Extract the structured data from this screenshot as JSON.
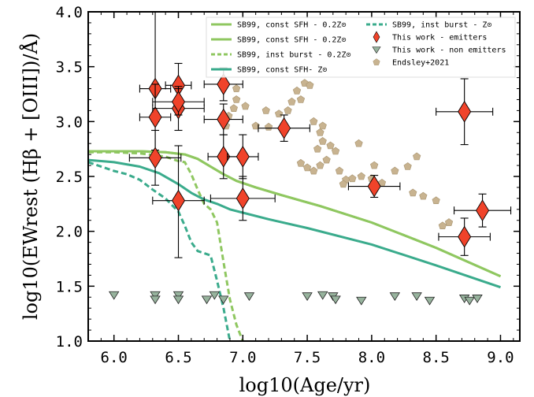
{
  "chart_data": {
    "type": "scatter",
    "xlabel": "log10(Age/yr)",
    "ylabel": "log10(EWrest (Hβ + [OIII])/Å)",
    "xlim": [
      5.8,
      9.15
    ],
    "ylim": [
      1.0,
      4.0
    ],
    "xticks": [
      6.0,
      6.5,
      7.0,
      7.5,
      8.0,
      8.5,
      9.0
    ],
    "xtick_labels": [
      "6.0",
      "6.5",
      "7.0",
      "7.5",
      "8.0",
      "8.5",
      "9.0"
    ],
    "yticks": [
      1.0,
      1.5,
      2.0,
      2.5,
      3.0,
      3.5,
      4.0
    ],
    "ytick_labels": [
      "1.0",
      "1.5",
      "2.0",
      "2.5",
      "3.0",
      "3.5",
      "4.0"
    ],
    "legend_position": "top-right",
    "colors": {
      "light_green": "#8fc760",
      "teal": "#3aab8c",
      "emitter": "#f0432a",
      "non_emitter": "#97b39d",
      "endsley": "#c8b390"
    },
    "lines": [
      {
        "name": "SB99, const SFH - 0.2Z⊙",
        "color": "#8fc760",
        "dash": "solid",
        "x": [
          5.8,
          6.0,
          6.2,
          6.4,
          6.55,
          6.65,
          6.75,
          6.85,
          6.95,
          7.1,
          7.3,
          7.6,
          8.0,
          8.5,
          9.0
        ],
        "y": [
          2.73,
          2.73,
          2.73,
          2.72,
          2.7,
          2.66,
          2.59,
          2.52,
          2.46,
          2.4,
          2.33,
          2.23,
          2.08,
          1.85,
          1.59
        ]
      },
      {
        "name": "SB99, const SFH - 0.2Z⊙",
        "color": "#8fc760",
        "dash": "solid",
        "x": [
          5.8,
          6.0,
          6.2,
          6.4,
          6.55,
          6.65,
          6.75,
          6.85,
          6.95,
          7.1,
          7.3,
          7.6,
          8.0,
          8.5,
          9.0
        ],
        "y": [
          2.73,
          2.73,
          2.73,
          2.72,
          2.7,
          2.66,
          2.59,
          2.52,
          2.46,
          2.4,
          2.33,
          2.23,
          2.08,
          1.85,
          1.59
        ]
      },
      {
        "name": "SB99, inst burst - 0.2Z⊙",
        "color": "#8fc760",
        "dash": "dashed",
        "x": [
          5.8,
          6.0,
          6.2,
          6.4,
          6.5,
          6.55,
          6.6,
          6.65,
          6.7,
          6.75,
          6.8,
          6.85,
          6.9,
          6.95,
          7.0
        ],
        "y": [
          2.72,
          2.72,
          2.71,
          2.68,
          2.64,
          2.63,
          2.52,
          2.38,
          2.25,
          2.2,
          2.08,
          1.72,
          1.38,
          1.15,
          1.0
        ]
      },
      {
        "name": "SB99, const SFH- Z⊙",
        "color": "#3aab8c",
        "dash": "solid",
        "x": [
          5.8,
          6.0,
          6.2,
          6.35,
          6.5,
          6.6,
          6.7,
          6.8,
          6.9,
          7.0,
          7.2,
          7.5,
          8.0,
          8.5,
          9.0
        ],
        "y": [
          2.65,
          2.63,
          2.59,
          2.53,
          2.43,
          2.35,
          2.29,
          2.25,
          2.2,
          2.17,
          2.11,
          2.03,
          1.88,
          1.69,
          1.49
        ]
      },
      {
        "name": "SB99, inst burst - Z⊙",
        "color": "#3aab8c",
        "dash": "dashed",
        "x": [
          5.8,
          6.0,
          6.1,
          6.2,
          6.3,
          6.4,
          6.5,
          6.55,
          6.6,
          6.65,
          6.7,
          6.75,
          6.8,
          6.85,
          6.9
        ],
        "y": [
          2.63,
          2.55,
          2.52,
          2.47,
          2.38,
          2.3,
          2.18,
          2.05,
          1.9,
          1.82,
          1.8,
          1.78,
          1.55,
          1.3,
          1.0
        ]
      }
    ],
    "series": [
      {
        "name": "This work - emitters",
        "marker": "diamond",
        "color": "#f0432a",
        "points": [
          {
            "x": 6.32,
            "y": 3.3,
            "yerr": [
              0.3,
              0.7
            ],
            "xerr": [
              0.12,
              0.12
            ]
          },
          {
            "x": 6.5,
            "y": 3.33,
            "yerr": [
              0.2,
              0.2
            ],
            "xerr": [
              0.1,
              0.1
            ]
          },
          {
            "x": 6.32,
            "y": 3.04,
            "yerr": [
              0.3,
              0.3
            ],
            "xerr": [
              0.12,
              0.12
            ]
          },
          {
            "x": 6.5,
            "y": 3.12,
            "yerr": [
              0.2,
              0.2
            ],
            "xerr": [
              0.2,
              0.2
            ]
          },
          {
            "x": 6.5,
            "y": 3.18,
            "yerr": [
              0.12,
              0.12
            ],
            "xerr": [
              0.2,
              0.2
            ]
          },
          {
            "x": 6.85,
            "y": 3.34,
            "yerr": [
              0.15,
              0.15
            ],
            "xerr": [
              0.15,
              0.15
            ]
          },
          {
            "x": 6.85,
            "y": 3.02,
            "yerr": [
              0.14,
              0.14
            ],
            "xerr": [
              0.15,
              0.15
            ]
          },
          {
            "x": 6.32,
            "y": 2.67,
            "yerr": [
              0.25,
              0.25
            ],
            "xerr": [
              0.2,
              0.2
            ]
          },
          {
            "x": 6.85,
            "y": 2.68,
            "yerr": [
              0.2,
              0.2
            ],
            "xerr": [
              0.12,
              0.12
            ]
          },
          {
            "x": 7.0,
            "y": 2.68,
            "yerr": [
              0.2,
              0.2
            ],
            "xerr": [
              0.12,
              0.12
            ]
          },
          {
            "x": 6.5,
            "y": 2.28,
            "yerr": [
              0.52,
              0.5
            ],
            "xerr": [
              0.2,
              0.2
            ]
          },
          {
            "x": 7.0,
            "y": 2.3,
            "yerr": [
              0.2,
              0.2
            ],
            "xerr": [
              0.25,
              0.25
            ]
          },
          {
            "x": 7.32,
            "y": 2.94,
            "yerr": [
              0.12,
              0.12
            ],
            "xerr": [
              0.2,
              0.2
            ]
          },
          {
            "x": 8.02,
            "y": 2.41,
            "yerr": [
              0.1,
              0.1
            ],
            "xerr": [
              0.2,
              0.2
            ]
          },
          {
            "x": 8.72,
            "y": 3.09,
            "yerr": [
              0.3,
              0.3
            ],
            "xerr": [
              0.22,
              0.22
            ]
          },
          {
            "x": 8.72,
            "y": 1.95,
            "yerr": [
              0.17,
              0.17
            ],
            "xerr": [
              0.2,
              0.2
            ]
          },
          {
            "x": 8.86,
            "y": 2.19,
            "yerr": [
              0.15,
              0.15
            ],
            "xerr": [
              0.22,
              0.22
            ]
          }
        ]
      },
      {
        "name": "This work - non emitters",
        "marker": "triangle-down",
        "color": "#97b39d",
        "points": [
          {
            "x": 6.0,
            "y": 1.42
          },
          {
            "x": 6.32,
            "y": 1.42
          },
          {
            "x": 6.32,
            "y": 1.38
          },
          {
            "x": 6.5,
            "y": 1.42
          },
          {
            "x": 6.5,
            "y": 1.38
          },
          {
            "x": 6.72,
            "y": 1.38
          },
          {
            "x": 6.78,
            "y": 1.42
          },
          {
            "x": 6.85,
            "y": 1.38
          },
          {
            "x": 7.05,
            "y": 1.41
          },
          {
            "x": 7.5,
            "y": 1.41
          },
          {
            "x": 7.62,
            "y": 1.42
          },
          {
            "x": 7.7,
            "y": 1.41
          },
          {
            "x": 7.72,
            "y": 1.38
          },
          {
            "x": 7.92,
            "y": 1.37
          },
          {
            "x": 8.18,
            "y": 1.41
          },
          {
            "x": 8.35,
            "y": 1.41
          },
          {
            "x": 8.45,
            "y": 1.37
          },
          {
            "x": 8.72,
            "y": 1.39
          },
          {
            "x": 8.76,
            "y": 1.37
          },
          {
            "x": 8.82,
            "y": 1.39
          }
        ]
      },
      {
        "name": "Endsley+2021",
        "marker": "pentagon",
        "color": "#c8b390",
        "points": [
          {
            "x": 6.95,
            "y": 3.3
          },
          {
            "x": 6.95,
            "y": 3.2
          },
          {
            "x": 6.93,
            "y": 3.12
          },
          {
            "x": 6.89,
            "y": 3.05
          },
          {
            "x": 6.87,
            "y": 2.96
          },
          {
            "x": 7.02,
            "y": 3.14
          },
          {
            "x": 7.1,
            "y": 2.96
          },
          {
            "x": 7.18,
            "y": 3.1
          },
          {
            "x": 7.2,
            "y": 2.95
          },
          {
            "x": 7.28,
            "y": 3.07
          },
          {
            "x": 7.35,
            "y": 3.1
          },
          {
            "x": 7.42,
            "y": 3.28
          },
          {
            "x": 7.48,
            "y": 3.35
          },
          {
            "x": 7.52,
            "y": 3.33
          },
          {
            "x": 7.45,
            "y": 3.2
          },
          {
            "x": 7.38,
            "y": 3.18
          },
          {
            "x": 7.55,
            "y": 3.0
          },
          {
            "x": 7.6,
            "y": 2.9
          },
          {
            "x": 7.62,
            "y": 2.82
          },
          {
            "x": 7.68,
            "y": 2.78
          },
          {
            "x": 7.72,
            "y": 2.73
          },
          {
            "x": 7.58,
            "y": 2.75
          },
          {
            "x": 7.65,
            "y": 2.65
          },
          {
            "x": 7.6,
            "y": 2.6
          },
          {
            "x": 7.45,
            "y": 2.62
          },
          {
            "x": 7.5,
            "y": 2.58
          },
          {
            "x": 7.55,
            "y": 2.55
          },
          {
            "x": 7.75,
            "y": 2.55
          },
          {
            "x": 7.8,
            "y": 2.47
          },
          {
            "x": 7.85,
            "y": 2.48
          },
          {
            "x": 7.92,
            "y": 2.5
          },
          {
            "x": 8.0,
            "y": 2.48
          },
          {
            "x": 8.08,
            "y": 2.44
          },
          {
            "x": 7.78,
            "y": 2.43
          },
          {
            "x": 7.9,
            "y": 2.8
          },
          {
            "x": 8.02,
            "y": 2.6
          },
          {
            "x": 8.18,
            "y": 2.55
          },
          {
            "x": 8.28,
            "y": 2.59
          },
          {
            "x": 8.32,
            "y": 2.35
          },
          {
            "x": 8.4,
            "y": 2.32
          },
          {
            "x": 8.5,
            "y": 2.28
          },
          {
            "x": 8.35,
            "y": 2.68
          },
          {
            "x": 8.55,
            "y": 2.05
          },
          {
            "x": 8.6,
            "y": 2.08
          },
          {
            "x": 7.62,
            "y": 2.96
          }
        ]
      }
    ],
    "legend": [
      {
        "label": "SB99, const SFH - 0.2Z⊙",
        "kind": "line",
        "color": "#8fc760",
        "dash": "solid"
      },
      {
        "label": "SB99, const SFH - 0.2Z⊙",
        "kind": "line",
        "color": "#8fc760",
        "dash": "solid"
      },
      {
        "label": "SB99, inst burst - 0.2Z⊙",
        "kind": "line",
        "color": "#8fc760",
        "dash": "dashed"
      },
      {
        "label": "SB99, const SFH- Z⊙",
        "kind": "line",
        "color": "#3aab8c",
        "dash": "solid"
      },
      {
        "label": "SB99, inst burst - Z⊙",
        "kind": "line",
        "color": "#3aab8c",
        "dash": "dashed"
      },
      {
        "label": "This work - emitters",
        "kind": "diamond",
        "color": "#f0432a"
      },
      {
        "label": "This work - non emitters",
        "kind": "triangle-down",
        "color": "#97b39d"
      },
      {
        "label": "Endsley+2021",
        "kind": "pentagon",
        "color": "#c8b390"
      }
    ]
  }
}
